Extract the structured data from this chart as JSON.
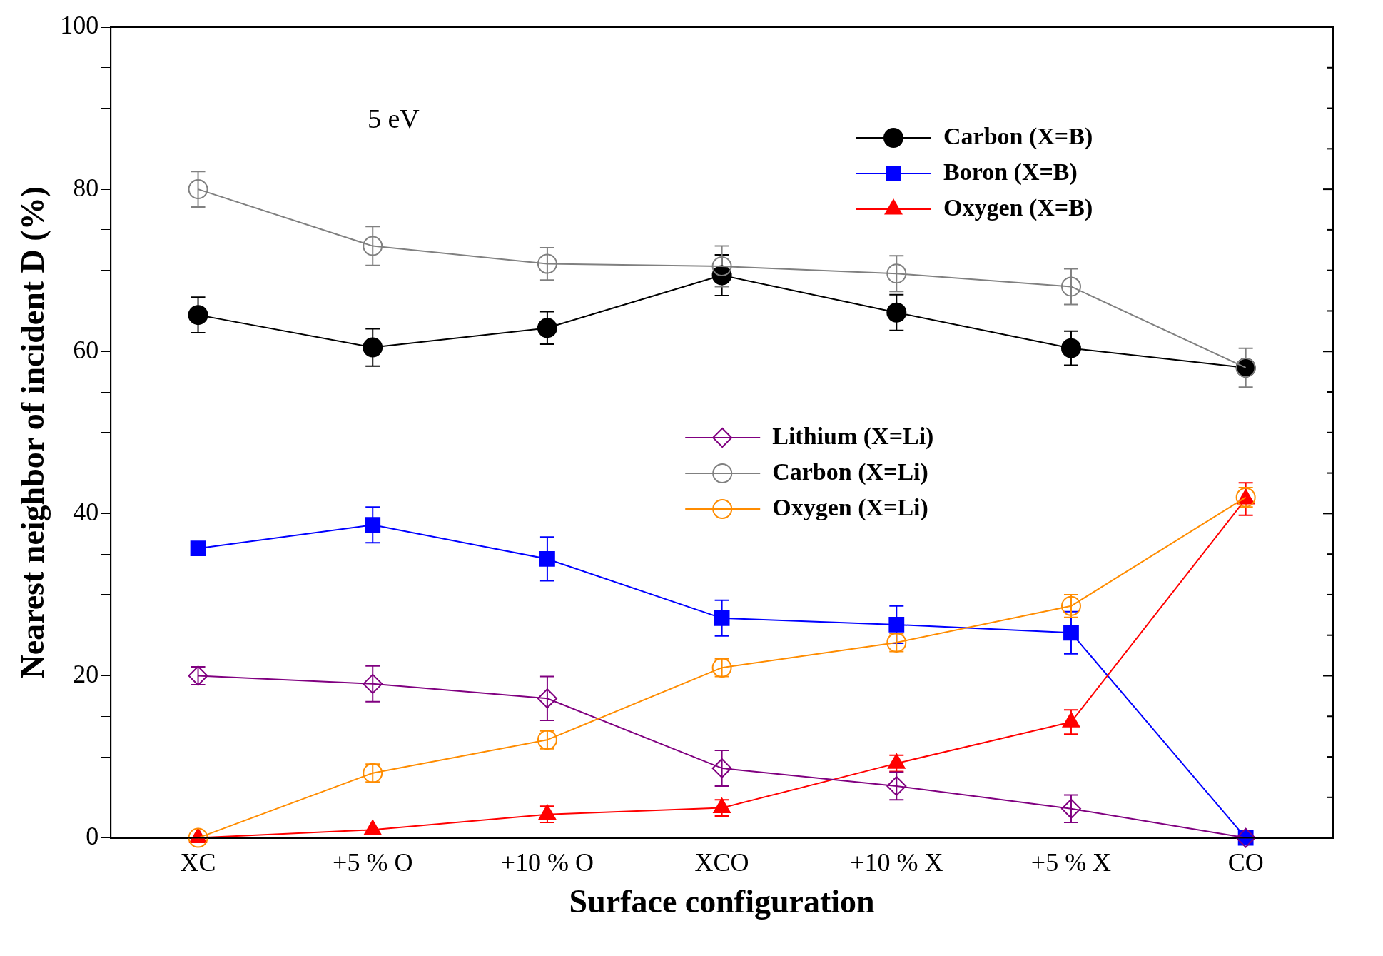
{
  "chart_data": {
    "type": "line",
    "xlabel": "Surface configuration",
    "ylabel": "Nearest neighbor of incident D (%)",
    "annotations": [
      "5 eV"
    ],
    "categories": [
      "XC",
      "+5 % O",
      "+10 % O",
      "XCO",
      "+10 % X",
      "+5 % X",
      "CO"
    ],
    "ylim": [
      0,
      100
    ],
    "yticks": [
      0,
      {
        "value": 5,
        "label": null
      },
      {
        "value": 10,
        "label": null
      },
      {
        "value": 15,
        "label": null
      },
      20,
      {
        "value": 25,
        "label": null
      },
      {
        "value": 30,
        "label": null
      },
      {
        "value": 35,
        "label": null
      },
      40,
      {
        "value": 45,
        "label": null
      },
      {
        "value": 50,
        "label": null
      },
      {
        "value": 55,
        "label": null
      },
      60,
      {
        "value": 65,
        "label": null
      },
      {
        "value": 70,
        "label": null
      },
      {
        "value": 75,
        "label": null
      },
      80,
      {
        "value": 85,
        "label": null
      },
      {
        "value": 90,
        "label": null
      },
      {
        "value": 95,
        "label": null
      },
      100
    ],
    "grid": false,
    "legend": "top right",
    "line_style": "solid",
    "series": [
      {
        "name": "Carbon (X=B)",
        "color": "#000000",
        "marker": "circle",
        "values": [
          64.5,
          60.5,
          62.9,
          69.4,
          64.8,
          60.4,
          58
        ],
        "errors": [
          2.2,
          2.3,
          2,
          2.5,
          2.2,
          2.1,
          null
        ]
      },
      {
        "name": "Boron (X=B)",
        "color": "#0000ff",
        "marker": "square",
        "values": [
          35.7,
          38.6,
          34.4,
          27.1,
          26.3,
          25.3,
          0
        ],
        "errors": [
          null,
          2.2,
          2.7,
          2.2,
          2.3,
          2.6,
          null
        ]
      },
      {
        "name": "Oxygen (X=B)",
        "color": "#ff0000",
        "marker": "triangle",
        "values": [
          0,
          1,
          2.9,
          3.7,
          9.2,
          14.3,
          41.8
        ],
        "errors": [
          null,
          null,
          1,
          1,
          1,
          1.5,
          2
        ]
      },
      {
        "name": "Lithium (X=Li)",
        "color": "#800080",
        "marker": "diamond",
        "values": [
          20,
          19,
          17.2,
          8.6,
          6.4,
          3.6,
          0
        ],
        "errors": [
          1.1,
          2.2,
          2.7,
          2.2,
          1.7,
          1.7,
          null
        ]
      },
      {
        "name": "Carbon (X=Li)",
        "color": "#808080",
        "marker": "circle",
        "values": [
          80,
          73,
          70.8,
          70.5,
          69.6,
          68,
          58
        ],
        "errors": [
          2.2,
          2.4,
          2,
          2.5,
          2.2,
          2.2,
          2.4
        ]
      },
      {
        "name": "Oxygen (X=Li)",
        "color": "#ff8c00",
        "marker": "circle",
        "values": [
          0,
          8,
          12.1,
          21,
          24.1,
          28.6,
          42
        ],
        "errors": [
          null,
          1.1,
          1.1,
          1.1,
          1.1,
          1.4,
          1.2
        ]
      }
    ]
  }
}
